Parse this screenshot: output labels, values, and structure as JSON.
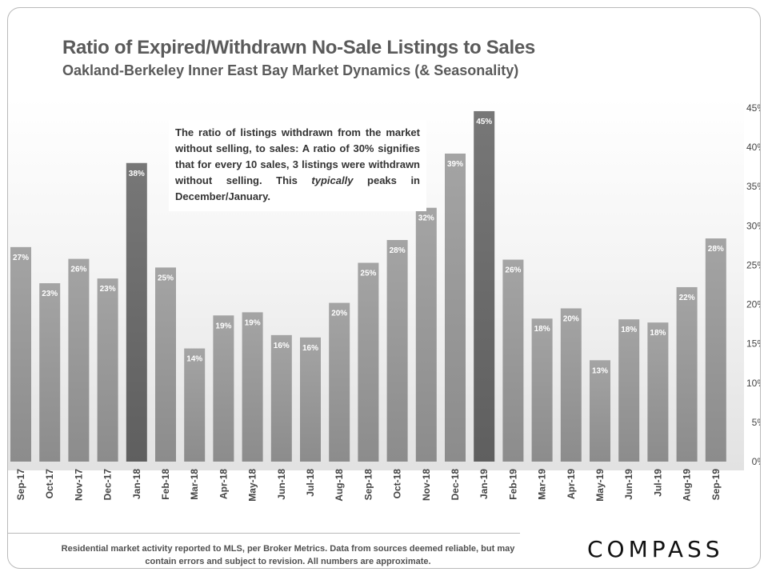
{
  "header": {
    "title": "Ratio of Expired/Withdrawn No-Sale Listings to Sales",
    "subtitle": "Oakland-Berkeley  Inner East Bay Market Dynamics  (& Seasonality)"
  },
  "annotation": {
    "part1": "The ratio of listings withdrawn from the market without selling, to sales: A ratio of 30% signifies that for every 10 sales, 3 listings were withdrawn without selling. This ",
    "emphasis": "typically",
    "part2": " peaks in December/January."
  },
  "footer": {
    "note": "Residential market activity reported to MLS, per Broker Metrics. Data from sources deemed reliable, but may contain errors and subject to revision. All numbers are approximate.",
    "logo": "COMPASS"
  },
  "colors": {
    "bar": "#9b9b9b",
    "bar_highlight": "#6f6f6f",
    "label": "#ffffff",
    "axis_text": "#444444"
  },
  "chart_data": {
    "type": "bar",
    "categories": [
      "Sep-17",
      "Oct-17",
      "Nov-17",
      "Dec-17",
      "Jan-18",
      "Feb-18",
      "Mar-18",
      "Apr-18",
      "May-18",
      "Jun-18",
      "Jul-18",
      "Aug-18",
      "Sep-18",
      "Oct-18",
      "Nov-18",
      "Dec-18",
      "Jan-19",
      "Feb-19",
      "Mar-19",
      "Apr-19",
      "May-19",
      "Jun-19",
      "Jul-19",
      "Aug-19",
      "Sep-19"
    ],
    "values": [
      27.3,
      22.7,
      25.8,
      23.3,
      38.0,
      24.7,
      14.4,
      18.6,
      19.0,
      16.1,
      15.8,
      20.2,
      25.3,
      28.2,
      32.3,
      39.2,
      44.6,
      25.7,
      18.2,
      19.5,
      12.9,
      18.1,
      17.7,
      22.2,
      28.4
    ],
    "data_labels": [
      "27%",
      "23%",
      "26%",
      "23%",
      "38%",
      "25%",
      "14%",
      "19%",
      "19%",
      "16%",
      "16%",
      "20%",
      "25%",
      "28%",
      "32%",
      "39%",
      "45%",
      "26%",
      "18%",
      "20%",
      "13%",
      "18%",
      "18%",
      "22%",
      "28%"
    ],
    "highlight": [
      "Jan-18",
      "Jan-19"
    ],
    "ylim": [
      0,
      45
    ],
    "yticks": [
      0,
      5,
      10,
      15,
      20,
      25,
      30,
      35,
      40,
      45
    ],
    "ytick_labels": [
      "0%",
      "5%",
      "10%",
      "15%",
      "20%",
      "25%",
      "30%",
      "35%",
      "40%",
      "45%"
    ],
    "y_axis_position": "right",
    "grid": false,
    "legend": "none"
  }
}
